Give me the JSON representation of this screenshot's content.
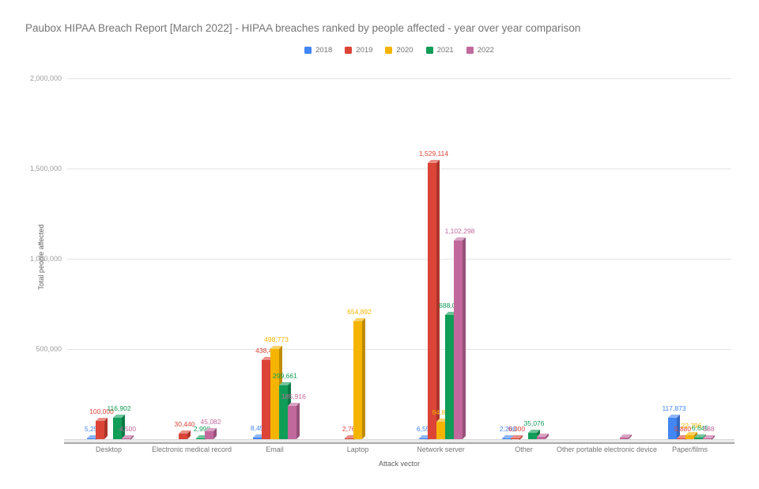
{
  "title": "Paubox HIPAA Breach Report [March 2022] - HIPAA breaches ranked by people affected - year over year comparison",
  "chart_data": {
    "type": "bar",
    "style": "3d-grouped-columns",
    "title": "Paubox HIPAA Breach Report [March 2022] - HIPAA breaches ranked by people affected - year over year comparison",
    "xlabel": "Attack vector",
    "ylabel": "Total people affected",
    "ylim": [
      0,
      2000000
    ],
    "grid": true,
    "legend_position": "top-center",
    "yticks": [
      {
        "value": 500000,
        "label": "500,000"
      },
      {
        "value": 1000000,
        "label": "1,000,000"
      },
      {
        "value": 1500000,
        "label": "1,500,000"
      },
      {
        "value": 2000000,
        "label": "2,000,000"
      }
    ],
    "categories": [
      "Desktop",
      "Electronic medical record",
      "Email",
      "Laptop",
      "Network server",
      "Other",
      "Other portable electronic device",
      "Paper/films"
    ],
    "series": [
      {
        "name": "2018",
        "color": "#4285F4",
        "values": [
          5257,
          null,
          8451,
          null,
          6550,
          2200,
          null,
          117873
        ],
        "labels": [
          "5,257",
          "",
          "8,451",
          "",
          "6,550",
          "2,200",
          "",
          "117,873"
        ]
      },
      {
        "name": "2019",
        "color": "#DC4437",
        "values": [
          100000,
          30440,
          438421,
          2763,
          1529114,
          6000,
          null,
          5880
        ],
        "labels": [
          "100,000",
          "30,440",
          "438,421",
          "2,763",
          "1,529,114",
          "6,000",
          "",
          "5,880"
        ]
      },
      {
        "name": "2020",
        "color": "#F5B400",
        "values": [
          null,
          null,
          498773,
          654892,
          94818,
          null,
          null,
          22796
        ],
        "labels": [
          "",
          "",
          "498,773",
          "654,892",
          "94,818",
          "",
          "",
          "22,796"
        ]
      },
      {
        "name": "2021",
        "color": "#109D58",
        "values": [
          116902,
          2998,
          299661,
          null,
          688037,
          35076,
          null,
          6645
        ],
        "labels": [
          "116,902",
          "2,998",
          "299,661",
          "",
          "688,037",
          "35,076",
          "",
          "6,645"
        ]
      },
      {
        "name": "2022",
        "color": "#C2689C",
        "values": [
          4500,
          45082,
          185916,
          null,
          1102298,
          12000,
          10000,
          588
        ],
        "labels": [
          "4,500",
          "45,082",
          "185,916",
          "",
          "1,102,298",
          "",
          "",
          "588"
        ]
      }
    ]
  }
}
